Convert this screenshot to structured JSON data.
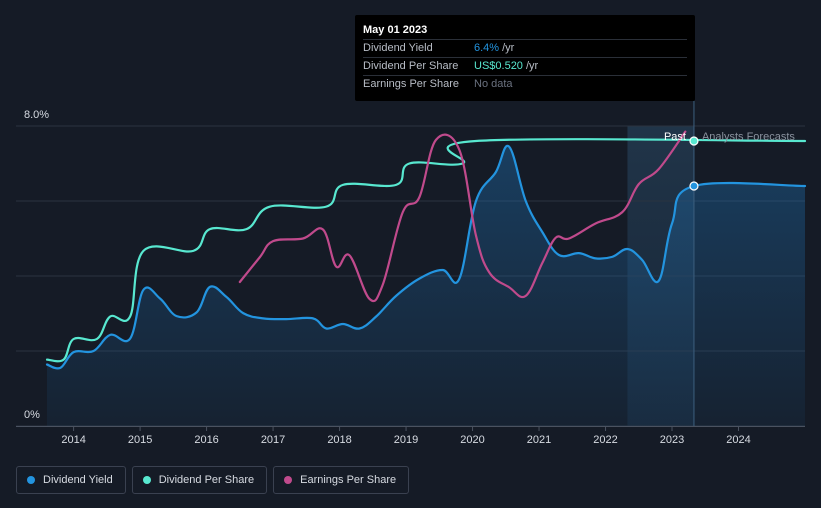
{
  "colors": {
    "yield": "#2394df",
    "dps": "#58e8d0",
    "eps": "#c04a8c",
    "grid": "#2b3340",
    "forecast_text": "#8a929e"
  },
  "tooltip": {
    "date": "May 01 2023",
    "rows": [
      {
        "label": "Dividend Yield",
        "value": "6.4%",
        "unit": "/yr"
      },
      {
        "label": "Dividend Per Share",
        "value": "US$0.520",
        "unit": "/yr"
      },
      {
        "label": "Earnings Per Share",
        "value": "No data",
        "unit": ""
      }
    ]
  },
  "legend": {
    "items": [
      {
        "label": "Dividend Yield"
      },
      {
        "label": "Dividend Per Share"
      },
      {
        "label": "Earnings Per Share"
      }
    ]
  },
  "chart_data": {
    "type": "line",
    "title": "",
    "y_axis": {
      "min": 0,
      "max": 8,
      "tick_labels": [
        "8.0%",
        "0%"
      ]
    },
    "x_axis": {
      "min": 2013.6,
      "max": 2025.0,
      "tick_labels": [
        "2014",
        "2015",
        "2016",
        "2017",
        "2018",
        "2019",
        "2020",
        "2021",
        "2022",
        "2023",
        "2024"
      ]
    },
    "past_label": "Past",
    "forecast_label": "Analysts Forecasts",
    "divider_x": 2023.33,
    "forecast_shade_start": 2022.33,
    "series": [
      {
        "name": "Dividend Yield",
        "unit": "%",
        "points": [
          [
            2013.6,
            1.64
          ],
          [
            2013.8,
            1.55
          ],
          [
            2014.0,
            1.97
          ],
          [
            2014.3,
            2.0
          ],
          [
            2014.55,
            2.43
          ],
          [
            2014.85,
            2.33
          ],
          [
            2015.05,
            3.63
          ],
          [
            2015.3,
            3.4
          ],
          [
            2015.55,
            2.93
          ],
          [
            2015.85,
            3.03
          ],
          [
            2016.05,
            3.71
          ],
          [
            2016.3,
            3.44
          ],
          [
            2016.55,
            3.01
          ],
          [
            2016.85,
            2.87
          ],
          [
            2017.2,
            2.85
          ],
          [
            2017.6,
            2.87
          ],
          [
            2017.8,
            2.6
          ],
          [
            2018.05,
            2.72
          ],
          [
            2018.3,
            2.6
          ],
          [
            2018.55,
            2.92
          ],
          [
            2018.85,
            3.47
          ],
          [
            2019.2,
            3.93
          ],
          [
            2019.55,
            4.16
          ],
          [
            2019.8,
            3.92
          ],
          [
            2020.05,
            5.99
          ],
          [
            2020.35,
            6.77
          ],
          [
            2020.55,
            7.45
          ],
          [
            2020.8,
            6.0
          ],
          [
            2021.05,
            5.17
          ],
          [
            2021.3,
            4.56
          ],
          [
            2021.6,
            4.61
          ],
          [
            2021.85,
            4.47
          ],
          [
            2022.1,
            4.51
          ],
          [
            2022.33,
            4.72
          ],
          [
            2022.55,
            4.43
          ],
          [
            2022.8,
            3.87
          ],
          [
            2023.0,
            5.4
          ],
          [
            2023.33,
            6.4
          ],
          [
            2025.0,
            6.4
          ]
        ]
      },
      {
        "name": "Dividend Per Share",
        "unit": "US$",
        "points": [
          [
            2013.6,
            1.77
          ],
          [
            2013.85,
            1.77
          ],
          [
            2014.0,
            2.32
          ],
          [
            2014.35,
            2.32
          ],
          [
            2014.55,
            2.92
          ],
          [
            2014.85,
            2.92
          ],
          [
            2015.05,
            4.67
          ],
          [
            2015.8,
            4.67
          ],
          [
            2016.05,
            5.25
          ],
          [
            2016.6,
            5.25
          ],
          [
            2016.95,
            5.85
          ],
          [
            2017.8,
            5.85
          ],
          [
            2018.05,
            6.43
          ],
          [
            2018.85,
            6.43
          ],
          [
            2019.05,
            7.0
          ],
          [
            2019.85,
            7.0
          ],
          [
            2020.05,
            7.6
          ],
          [
            2025.0,
            7.6
          ]
        ]
      },
      {
        "name": "Earnings Per Share",
        "unit": "US$",
        "points": [
          [
            2016.5,
            3.84
          ],
          [
            2016.8,
            4.5
          ],
          [
            2017.0,
            4.93
          ],
          [
            2017.45,
            5.0
          ],
          [
            2017.75,
            5.24
          ],
          [
            2017.95,
            4.25
          ],
          [
            2018.15,
            4.55
          ],
          [
            2018.45,
            3.39
          ],
          [
            2018.65,
            3.77
          ],
          [
            2018.95,
            5.7
          ],
          [
            2019.2,
            6.1
          ],
          [
            2019.45,
            7.63
          ],
          [
            2019.8,
            7.37
          ],
          [
            2020.05,
            5.09
          ],
          [
            2020.25,
            4.1
          ],
          [
            2020.55,
            3.7
          ],
          [
            2020.8,
            3.47
          ],
          [
            2021.05,
            4.35
          ],
          [
            2021.25,
            5.02
          ],
          [
            2021.45,
            5.0
          ],
          [
            2021.85,
            5.4
          ],
          [
            2022.25,
            5.7
          ],
          [
            2022.5,
            6.45
          ],
          [
            2022.8,
            6.85
          ],
          [
            2023.2,
            7.85
          ]
        ]
      }
    ]
  }
}
